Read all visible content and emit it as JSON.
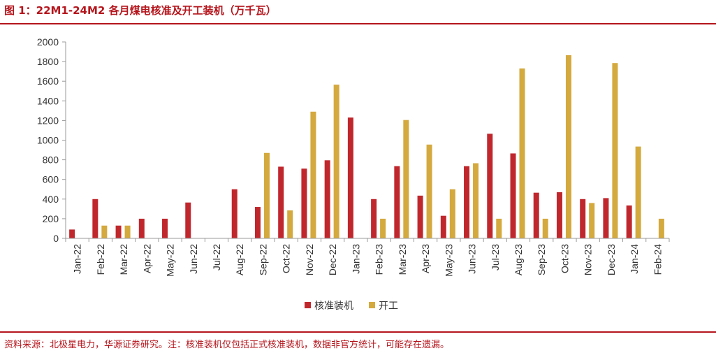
{
  "header": {
    "title": "图 1：22M1-24M2 各月煤电核准及开工装机（万千瓦）"
  },
  "footer": {
    "source": "资料来源：北极星电力，华源证券研究。注：核准装机仅包括正式核准装机，数据非官方统计，可能存在遗漏。"
  },
  "chart_data": {
    "type": "bar",
    "title": "",
    "xlabel": "",
    "ylabel": "",
    "ylim": [
      0,
      2000
    ],
    "yticks": [
      "0",
      "200",
      "400",
      "600",
      "800",
      "1000",
      "1200",
      "1400",
      "1600",
      "1800",
      "2000"
    ],
    "grid": false,
    "legend_position": "bottom",
    "categories": [
      "Jan-22",
      "Feb-22",
      "Mar-22",
      "Apr-22",
      "May-22",
      "Jun-22",
      "Jul-22",
      "Aug-22",
      "Sep-22",
      "Oct-22",
      "Nov-22",
      "Dec-22",
      "Jan-23",
      "Feb-23",
      "Mar-23",
      "Apr-23",
      "May-23",
      "Jun-23",
      "Jul-23",
      "Aug-23",
      "Sep-23",
      "Oct-23",
      "Nov-23",
      "Dec-23",
      "Jan-24",
      "Feb-24"
    ],
    "series": [
      {
        "name": "核准装机",
        "color": "#C0272D",
        "values": [
          90,
          400,
          130,
          200,
          200,
          365,
          0,
          500,
          320,
          730,
          710,
          795,
          1230,
          400,
          735,
          435,
          230,
          735,
          1065,
          865,
          465,
          470,
          400,
          410,
          335,
          0
        ]
      },
      {
        "name": "开工",
        "color": "#D4A93E",
        "values": [
          0,
          130,
          130,
          0,
          0,
          0,
          0,
          0,
          870,
          285,
          1290,
          1565,
          0,
          200,
          1205,
          955,
          500,
          765,
          200,
          1730,
          200,
          1865,
          360,
          1785,
          935,
          200
        ]
      }
    ]
  }
}
